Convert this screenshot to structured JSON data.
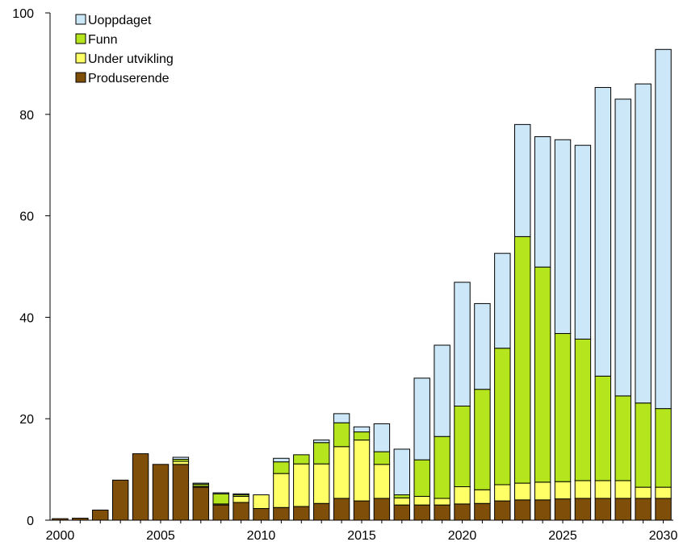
{
  "chart_data": {
    "type": "bar",
    "stacked": true,
    "title": "",
    "xlabel": "",
    "ylabel": "",
    "ylim": [
      0,
      100
    ],
    "yticks": [
      0,
      20,
      40,
      60,
      80,
      100
    ],
    "xtick_labels": [
      "2000",
      "2005",
      "2010",
      "2015",
      "2020",
      "2025",
      "2030"
    ],
    "categories": [
      2000,
      2001,
      2002,
      2003,
      2004,
      2005,
      2006,
      2007,
      2008,
      2009,
      2010,
      2011,
      2012,
      2013,
      2014,
      2015,
      2016,
      2017,
      2018,
      2019,
      2020,
      2021,
      2022,
      2023,
      2024,
      2025,
      2026,
      2027,
      2028,
      2029,
      2030
    ],
    "legend_position": "top-left",
    "grid": false,
    "series": [
      {
        "name": "Produserende",
        "color": "#7f4f0a",
        "values": [
          0.3,
          0.4,
          2.0,
          7.9,
          13.1,
          11.0,
          11.0,
          6.5,
          3.0,
          3.5,
          2.3,
          2.5,
          2.7,
          3.3,
          4.3,
          3.8,
          4.3,
          3.0,
          3.0,
          3.0,
          3.2,
          3.3,
          3.8,
          4.0,
          4.0,
          4.2,
          4.3,
          4.3,
          4.3,
          4.3,
          4.3
        ]
      },
      {
        "name": "Under utvikling",
        "color": "#ffff66",
        "values": [
          0,
          0,
          0,
          0,
          0,
          0,
          0.6,
          0.2,
          0.2,
          1.2,
          2.7,
          6.7,
          8.4,
          7.8,
          10.2,
          12.0,
          6.7,
          1.4,
          1.7,
          1.3,
          3.4,
          2.7,
          3.2,
          3.3,
          3.5,
          3.4,
          3.5,
          3.5,
          3.5,
          2.2,
          2.2
        ]
      },
      {
        "name": "Funn",
        "color": "#b5e61d",
        "values": [
          0,
          0,
          0,
          0,
          0,
          0,
          0.4,
          0.4,
          2.0,
          0.3,
          0,
          2.3,
          1.8,
          4.2,
          4.7,
          1.6,
          2.5,
          0.6,
          7.2,
          12.2,
          15.9,
          19.8,
          26.9,
          48.6,
          42.4,
          29.2,
          27.9,
          20.6,
          16.7,
          16.6,
          15.5
        ]
      },
      {
        "name": "Uoppdaget",
        "color": "#cce8f8",
        "values": [
          0,
          0,
          0,
          0,
          0,
          0,
          0.4,
          0.2,
          0.2,
          0.2,
          0,
          0.7,
          0,
          0.5,
          1.8,
          1.0,
          5.5,
          9.0,
          16.1,
          18.0,
          24.4,
          16.9,
          18.7,
          22.1,
          25.7,
          38.2,
          38.2,
          56.9,
          58.5,
          62.9,
          70.8
        ]
      }
    ],
    "legend_order": [
      "Uoppdaget",
      "Funn",
      "Under utvikling",
      "Produserende"
    ]
  }
}
